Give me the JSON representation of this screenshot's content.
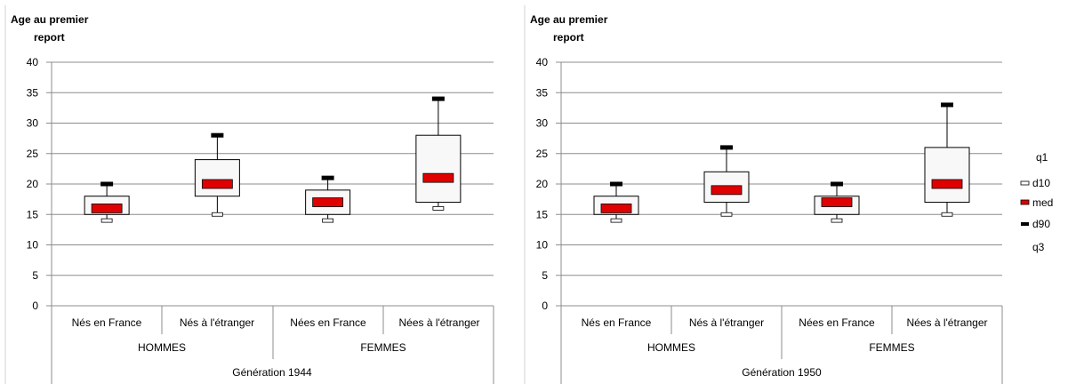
{
  "colors": {
    "grid": "#8c8c8c",
    "box_fill": "#f8f8f8",
    "median": "#e00000",
    "d10_fill": "#ffffff",
    "d90": "#000000"
  },
  "legend": {
    "items": [
      "q1",
      "d10",
      "med",
      "d90",
      "q3"
    ]
  },
  "chart_data": [
    {
      "type": "boxplot",
      "ylabel_line1": "Age au premier",
      "ylabel_line2": "report",
      "ylim": [
        0,
        40
      ],
      "yticks": [
        "0",
        "5",
        "10",
        "15",
        "20",
        "25",
        "30",
        "35",
        "40"
      ],
      "grid": true,
      "categories": [
        "Nés en France",
        "Nés à l'étranger",
        "Nées en France",
        "Nées à l'étranger"
      ],
      "groups": [
        "HOMMES",
        "FEMMES"
      ],
      "generation": "Génération 1944",
      "series": [
        {
          "name": "d10",
          "values": [
            14,
            15,
            14,
            16
          ]
        },
        {
          "name": "q1",
          "values": [
            15,
            18,
            15,
            17
          ]
        },
        {
          "name": "med",
          "values": [
            16,
            20,
            17,
            21
          ]
        },
        {
          "name": "q3",
          "values": [
            18,
            24,
            19,
            28
          ]
        },
        {
          "name": "d90",
          "values": [
            20,
            28,
            21,
            34
          ]
        }
      ]
    },
    {
      "type": "boxplot",
      "ylabel_line1": "Age au premier",
      "ylabel_line2": "report",
      "ylim": [
        0,
        40
      ],
      "yticks": [
        "0",
        "5",
        "10",
        "15",
        "20",
        "25",
        "30",
        "35",
        "40"
      ],
      "grid": true,
      "categories": [
        "Nés en France",
        "Nés à l'étranger",
        "Nées en France",
        "Nées à l'étranger"
      ],
      "groups": [
        "HOMMES",
        "FEMMES"
      ],
      "generation": "Génération 1950",
      "series": [
        {
          "name": "d10",
          "values": [
            14,
            15,
            14,
            15
          ]
        },
        {
          "name": "q1",
          "values": [
            15,
            17,
            15,
            17
          ]
        },
        {
          "name": "med",
          "values": [
            16,
            19,
            17,
            20
          ]
        },
        {
          "name": "q3",
          "values": [
            18,
            22,
            18,
            26
          ]
        },
        {
          "name": "d90",
          "values": [
            20,
            26,
            20,
            33
          ]
        }
      ]
    }
  ]
}
